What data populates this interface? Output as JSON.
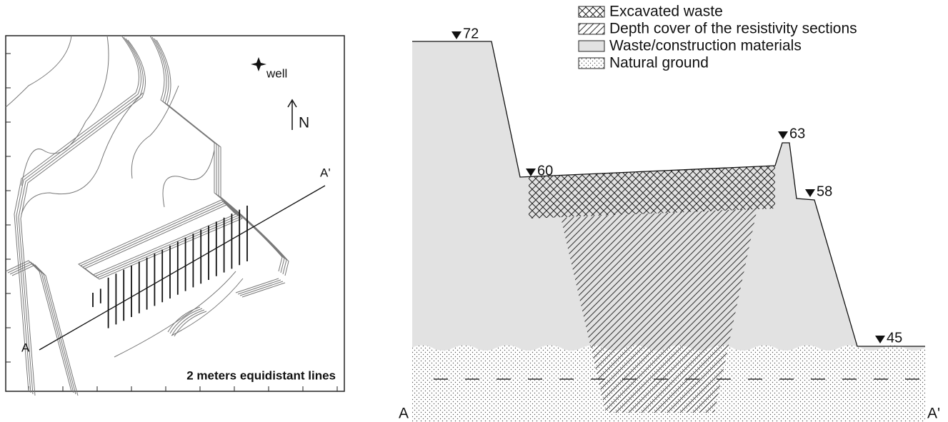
{
  "map": {
    "well_label": "well",
    "north_label": "N",
    "start_label": "A",
    "end_label": "A'",
    "caption": "2 meters equidistant lines"
  },
  "legend": {
    "items": [
      "Excavated waste",
      "Depth cover of the resistivity sections",
      "Waste/construction materials",
      "Natural ground"
    ]
  },
  "section": {
    "elevations": [
      72,
      60,
      63,
      58,
      45
    ],
    "start_label": "A",
    "end_label": "A'"
  }
}
